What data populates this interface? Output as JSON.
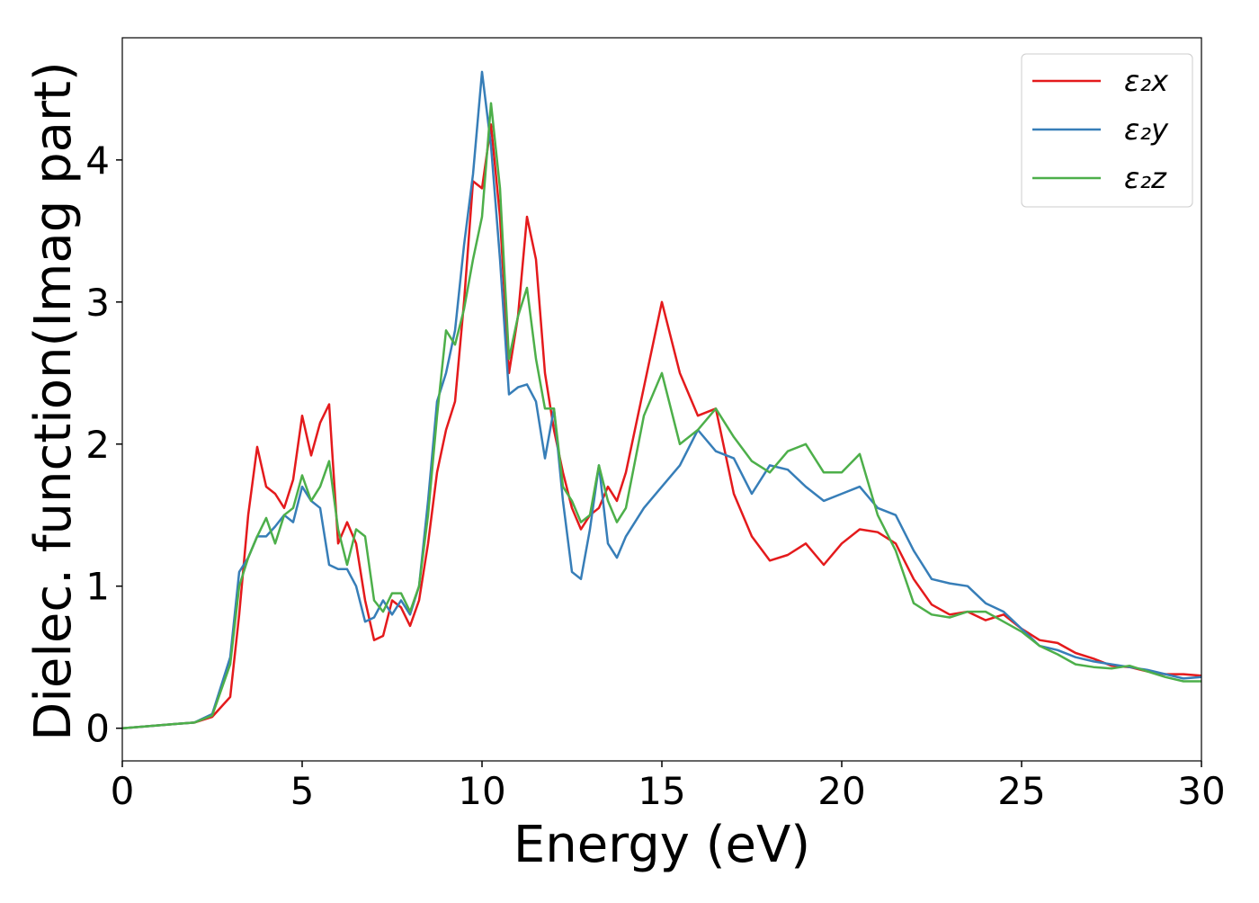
{
  "chart_data": {
    "type": "line",
    "x_label": "Energy (eV)",
    "y_label": "Dielec. function(Imag part)",
    "x": [
      0,
      0.5,
      1,
      1.5,
      2,
      2.5,
      3,
      3.25,
      3.5,
      3.75,
      4,
      4.25,
      4.5,
      4.75,
      5,
      5.25,
      5.5,
      5.75,
      6,
      6.25,
      6.5,
      6.75,
      7,
      7.25,
      7.5,
      7.75,
      8,
      8.25,
      8.5,
      8.75,
      9,
      9.25,
      9.5,
      9.75,
      10,
      10.25,
      10.5,
      10.75,
      11,
      11.25,
      11.5,
      11.75,
      12,
      12.25,
      12.5,
      12.75,
      13,
      13.25,
      13.5,
      13.75,
      14,
      14.5,
      15,
      15.5,
      16,
      16.5,
      17,
      17.5,
      18,
      18.5,
      19,
      19.5,
      20,
      20.5,
      21,
      21.5,
      22,
      22.5,
      23,
      23.5,
      24,
      24.5,
      25,
      25.5,
      26,
      26.5,
      27,
      27.5,
      28,
      28.5,
      29,
      29.5,
      30
    ],
    "series": [
      {
        "name": "ε₂x",
        "color": "#e41a1c",
        "values": [
          0,
          0.01,
          0.02,
          0.03,
          0.04,
          0.08,
          0.22,
          0.8,
          1.5,
          1.98,
          1.7,
          1.65,
          1.55,
          1.75,
          2.2,
          1.92,
          2.15,
          2.28,
          1.3,
          1.45,
          1.3,
          0.9,
          0.62,
          0.65,
          0.9,
          0.85,
          0.72,
          0.9,
          1.3,
          1.8,
          2.1,
          2.3,
          3.0,
          3.85,
          3.8,
          4.25,
          3.6,
          2.5,
          2.9,
          3.6,
          3.3,
          2.5,
          2.1,
          1.8,
          1.55,
          1.4,
          1.5,
          1.55,
          1.7,
          1.6,
          1.8,
          2.4,
          3.0,
          2.5,
          2.2,
          2.25,
          1.65,
          1.35,
          1.18,
          1.22,
          1.3,
          1.15,
          1.3,
          1.4,
          1.38,
          1.3,
          1.05,
          0.87,
          0.8,
          0.82,
          0.76,
          0.8,
          0.7,
          0.62,
          0.6,
          0.53,
          0.49,
          0.44,
          0.43,
          0.4,
          0.38,
          0.38,
          0.37
        ]
      },
      {
        "name": "ε₂y",
        "color": "#377eb8",
        "values": [
          0,
          0.01,
          0.02,
          0.03,
          0.04,
          0.1,
          0.5,
          1.1,
          1.2,
          1.35,
          1.35,
          1.42,
          1.5,
          1.45,
          1.7,
          1.6,
          1.55,
          1.15,
          1.12,
          1.12,
          1.0,
          0.75,
          0.78,
          0.9,
          0.8,
          0.9,
          0.8,
          1.0,
          1.6,
          2.3,
          2.5,
          2.8,
          3.4,
          3.9,
          4.62,
          4.1,
          3.3,
          2.35,
          2.4,
          2.42,
          2.3,
          1.9,
          2.25,
          1.6,
          1.1,
          1.05,
          1.4,
          1.85,
          1.3,
          1.2,
          1.35,
          1.55,
          1.7,
          1.85,
          2.1,
          1.95,
          1.9,
          1.65,
          1.85,
          1.82,
          1.7,
          1.6,
          1.65,
          1.7,
          1.55,
          1.5,
          1.25,
          1.05,
          1.02,
          1.0,
          0.88,
          0.82,
          0.7,
          0.58,
          0.55,
          0.5,
          0.47,
          0.45,
          0.43,
          0.41,
          0.38,
          0.35,
          0.36
        ]
      },
      {
        "name": "ε₂z",
        "color": "#4daf4a",
        "values": [
          0,
          0.01,
          0.02,
          0.03,
          0.04,
          0.09,
          0.45,
          1.0,
          1.2,
          1.35,
          1.48,
          1.3,
          1.5,
          1.55,
          1.78,
          1.6,
          1.7,
          1.88,
          1.4,
          1.15,
          1.4,
          1.35,
          0.9,
          0.82,
          0.95,
          0.95,
          0.82,
          1.0,
          1.5,
          2.2,
          2.8,
          2.7,
          2.95,
          3.3,
          3.6,
          4.4,
          3.8,
          2.6,
          2.9,
          3.1,
          2.6,
          2.25,
          2.25,
          1.7,
          1.6,
          1.45,
          1.5,
          1.85,
          1.6,
          1.45,
          1.55,
          2.2,
          2.5,
          2.0,
          2.1,
          2.25,
          2.05,
          1.88,
          1.8,
          1.95,
          2.0,
          1.8,
          1.8,
          1.93,
          1.5,
          1.25,
          0.88,
          0.8,
          0.78,
          0.82,
          0.82,
          0.75,
          0.68,
          0.58,
          0.52,
          0.45,
          0.43,
          0.42,
          0.44,
          0.4,
          0.36,
          0.33,
          0.33
        ]
      }
    ],
    "xlim": [
      0,
      30
    ],
    "ylim": [
      -0.23,
      4.86
    ],
    "xticks": [
      0,
      5,
      10,
      15,
      20,
      25,
      30
    ],
    "yticks": [
      0,
      1,
      2,
      3,
      4
    ],
    "legend": "upper right"
  }
}
